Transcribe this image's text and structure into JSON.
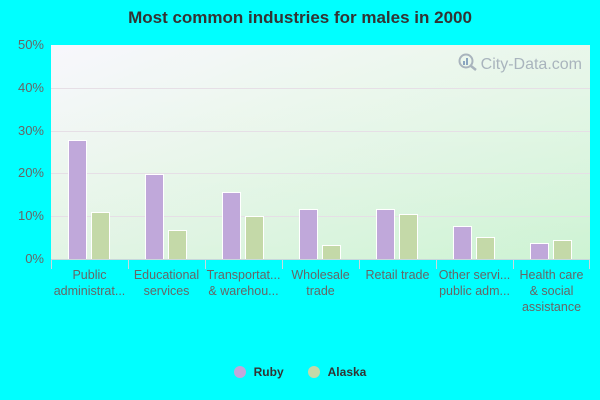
{
  "chart_data": {
    "type": "bar",
    "title": "Most common industries for males in 2000",
    "xlabel": "",
    "ylabel": "",
    "ylim": [
      0,
      50
    ],
    "yticks": [
      "0%",
      "10%",
      "20%",
      "30%",
      "40%",
      "50%"
    ],
    "grid": true,
    "legend_position": "bottom",
    "categories": [
      "Public administrat...",
      "Educational services",
      "Transportat... & warehou...",
      "Wholesale trade",
      "Retail trade",
      "Other servi... public adm...",
      "Health care & social assistance"
    ],
    "category_lines": [
      [
        "Public",
        "administrat..."
      ],
      [
        "Educational",
        "services"
      ],
      [
        "Transportat...",
        "& warehou..."
      ],
      [
        "Wholesale",
        "trade"
      ],
      [
        "Retail trade"
      ],
      [
        "Other servi...",
        "public adm..."
      ],
      [
        "Health care",
        "& social",
        "assistance"
      ]
    ],
    "series": [
      {
        "name": "Ruby",
        "color": "#c0a8da",
        "values": [
          27.8,
          19.8,
          15.7,
          11.8,
          11.8,
          7.8,
          3.8
        ]
      },
      {
        "name": "Alaska",
        "color": "#c4d9a8",
        "values": [
          11.1,
          6.7,
          10.1,
          3.3,
          10.6,
          5.2,
          4.5
        ]
      }
    ]
  },
  "watermark": "City-Data.com"
}
